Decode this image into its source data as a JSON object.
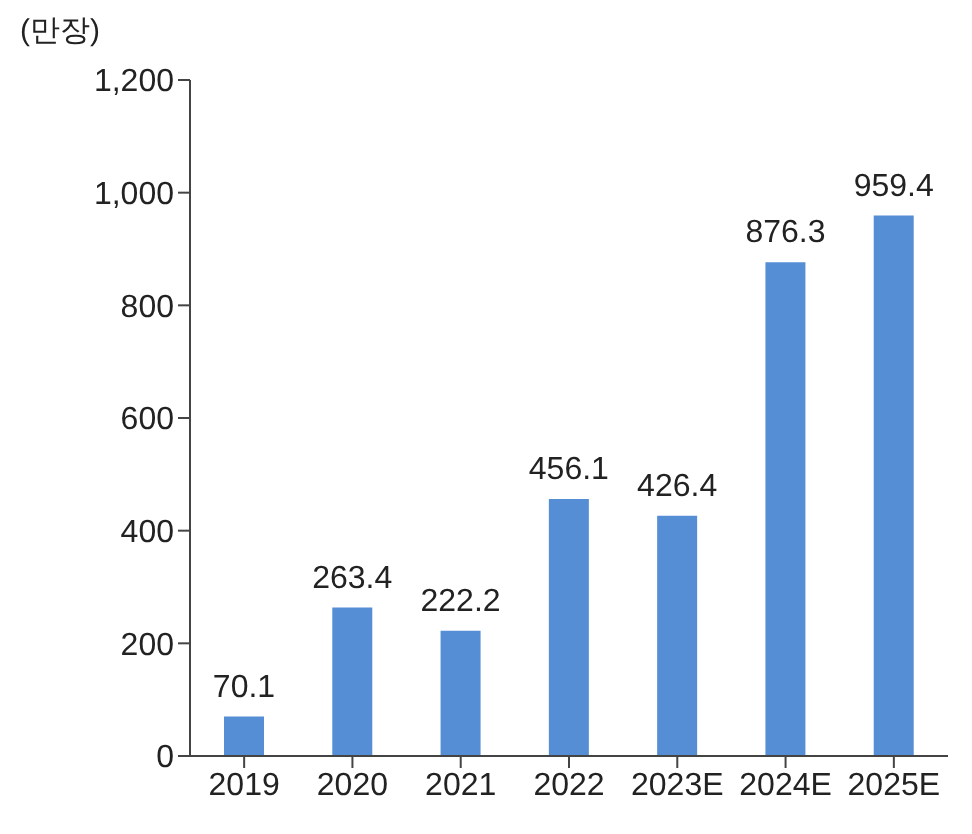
{
  "chart_data": {
    "type": "bar",
    "ylabel": "(만장)",
    "categories": [
      "2019",
      "2020",
      "2021",
      "2022",
      "2023E",
      "2024E",
      "2025E"
    ],
    "values": [
      70.1,
      263.4,
      222.2,
      456.1,
      426.4,
      876.3,
      959.4
    ],
    "color": "#558ed5",
    "ylim": [
      0,
      1200
    ],
    "yticks": [
      0,
      200,
      400,
      600,
      800,
      {
        "value": 1000,
        "label": "1,000"
      },
      {
        "value": 1200,
        "label": "1,200"
      }
    ],
    "data_labels": true
  }
}
